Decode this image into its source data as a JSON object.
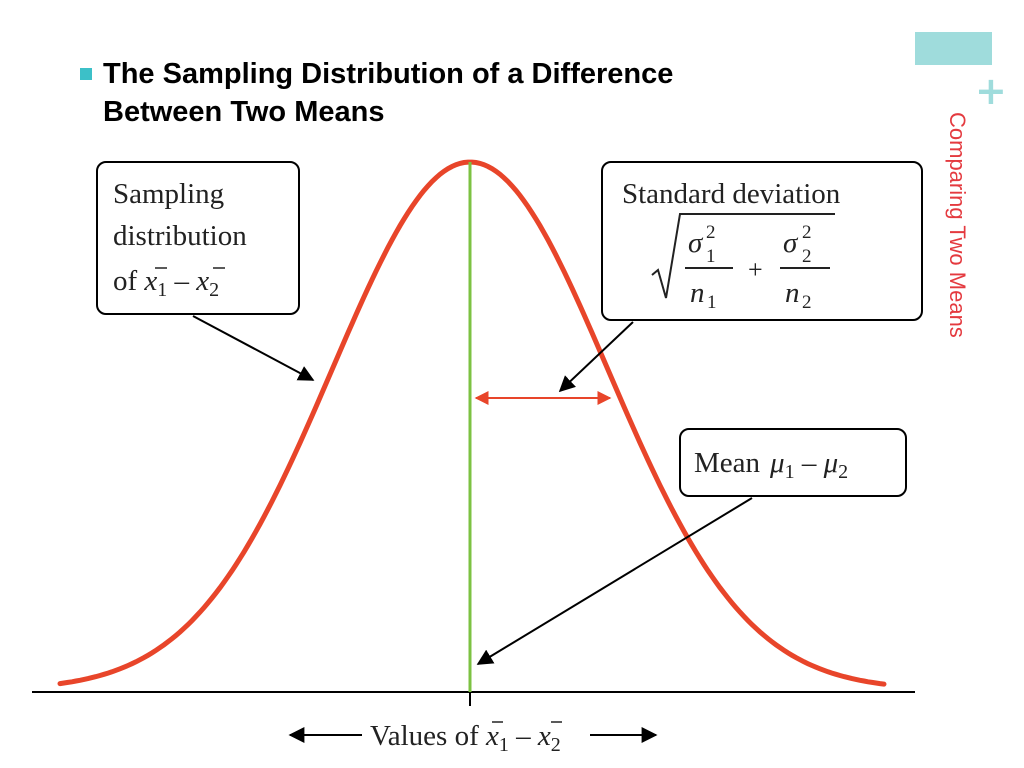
{
  "slide": {
    "title_line1": "The Sampling Distribution of a Difference",
    "title_line2": "Between Two Means",
    "side_title": "Comparing Two Means"
  },
  "diagram": {
    "callout_sampling": {
      "line1": "Sampling",
      "line2": "distribution",
      "line3_prefix": "of "
    },
    "callout_sd": {
      "label": "Standard deviation"
    },
    "callout_mean": {
      "label": "Mean"
    },
    "axis_label_prefix": "Values of "
  },
  "colors": {
    "curve": "#e8452a",
    "mean_line": "#7cc242",
    "sd_arrow": "#e8452a",
    "accent": "#9fdcdc",
    "side_title": "#e43a3f",
    "bullet": "#3cc0c8"
  }
}
